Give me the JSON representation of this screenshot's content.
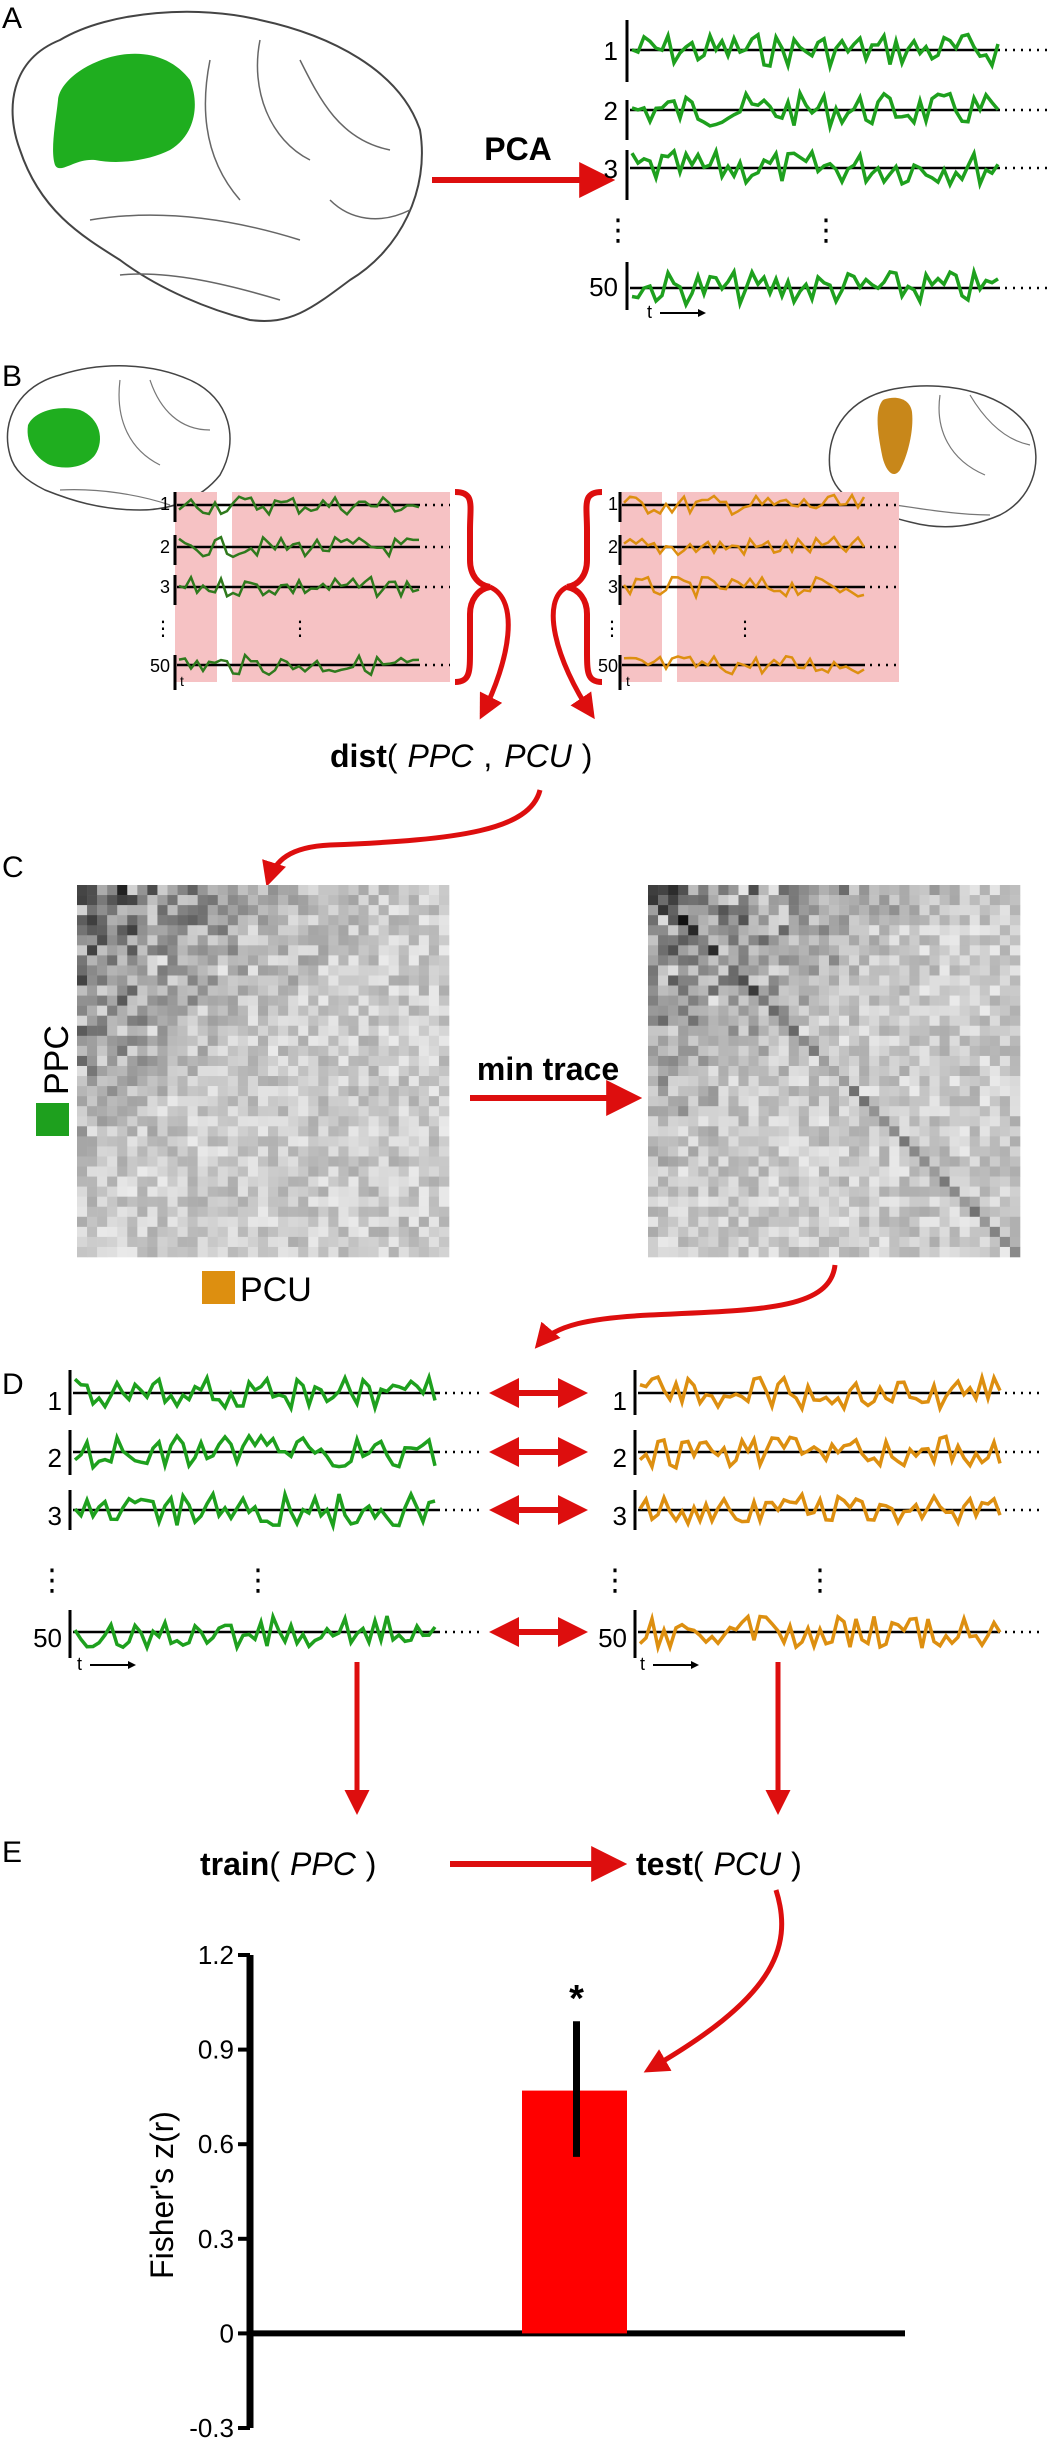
{
  "panels": {
    "a": "A",
    "b": "B",
    "c": "C",
    "d": "D",
    "e": "E"
  },
  "panel_a": {
    "arrow_label": "PCA",
    "rows": [
      "1",
      "2",
      "3",
      "50"
    ],
    "time_label": "t"
  },
  "panel_b": {
    "rows": [
      "1",
      "2",
      "3",
      "50"
    ],
    "time_label": "t",
    "dist_func": "dist",
    "dist_open": "(",
    "dist_arg1": "PPC",
    "dist_comma": ",",
    "dist_arg2": "PCU",
    "dist_close": ")"
  },
  "panel_c": {
    "row_label": "PPC",
    "col_label": "PCU",
    "arrow_label": "min trace"
  },
  "panel_d": {
    "rows": [
      "1",
      "2",
      "3",
      "50"
    ],
    "time_label": "t"
  },
  "panel_e": {
    "train_func": "train",
    "train_open": "(",
    "train_arg": "PPC",
    "train_close": ")",
    "test_func": "test",
    "test_open": "(",
    "test_arg": "PCU",
    "test_close": ")"
  },
  "colors": {
    "green": "#1ea01e",
    "dark_green": "#2f7a1d",
    "orange": "#dd8f10",
    "red": "#dd0e0e",
    "bar": "#ff0000",
    "pink": "#f6c2c4",
    "brain_region_green": "#1fae1f",
    "brain_region_orange": "#c8871a"
  },
  "chart_data": {
    "type": "bar",
    "categories": [
      ""
    ],
    "values": [
      0.77
    ],
    "error_bars": [
      {
        "low": 0.56,
        "high": 0.99
      }
    ],
    "significance": "*",
    "title": "",
    "xlabel": "",
    "ylabel": "Fisher's z(r)",
    "ylim": [
      -0.3,
      1.2
    ],
    "y_ticks": [
      "-0.3",
      "0",
      "0.3",
      "0.6",
      "0.9",
      "1.2"
    ],
    "grid": false
  }
}
